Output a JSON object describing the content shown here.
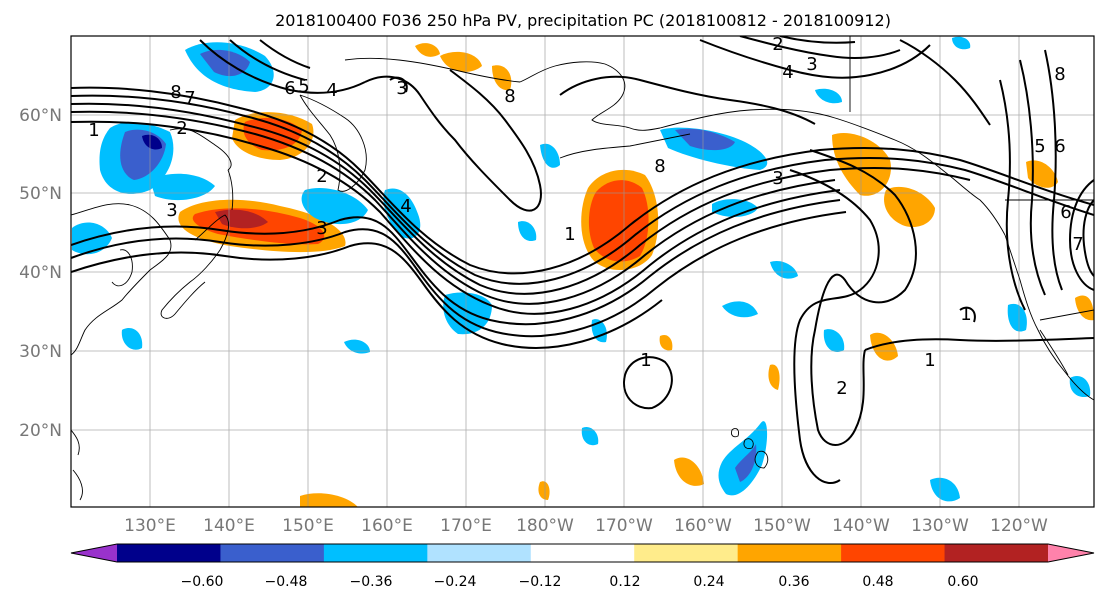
{
  "title": "2018100400 F036 250 hPa PV, precipitation PC (2018100812 - 2018100912)",
  "axes": {
    "x_tick_labels": [
      "130°E",
      "140°E",
      "150°E",
      "160°E",
      "170°E",
      "180°W",
      "170°W",
      "160°W",
      "150°W",
      "140°W",
      "130°W",
      "120°W"
    ],
    "y_tick_labels": [
      "20°N",
      "30°N",
      "40°N",
      "50°N",
      "60°N"
    ]
  },
  "colorbar": {
    "tick_labels": [
      "−0.60",
      "−0.48",
      "−0.36",
      "−0.24",
      "−0.12",
      "0.12",
      "0.24",
      "0.36",
      "0.48",
      "0.60"
    ],
    "bins": [
      {
        "color": "#9932cc"
      },
      {
        "color": "#00008b"
      },
      {
        "color": "#3a5fcd"
      },
      {
        "color": "#00bfff"
      },
      {
        "color": "#b0e2ff"
      },
      {
        "color": "#ffffff"
      },
      {
        "color": "#ffec8b"
      },
      {
        "color": "#ffa500"
      },
      {
        "color": "#ff4500"
      },
      {
        "color": "#b22222"
      },
      {
        "color": "#ff82ab"
      }
    ]
  },
  "contour_labels": [
    "8",
    "7",
    "6",
    "5",
    "4",
    "3",
    "2",
    "1",
    "3",
    "2",
    "4",
    "3",
    "8",
    "8",
    "4",
    "3",
    "2",
    "3",
    "1",
    "1",
    "2",
    "1",
    "1",
    "5",
    "6",
    "6",
    "7",
    "8"
  ]
}
